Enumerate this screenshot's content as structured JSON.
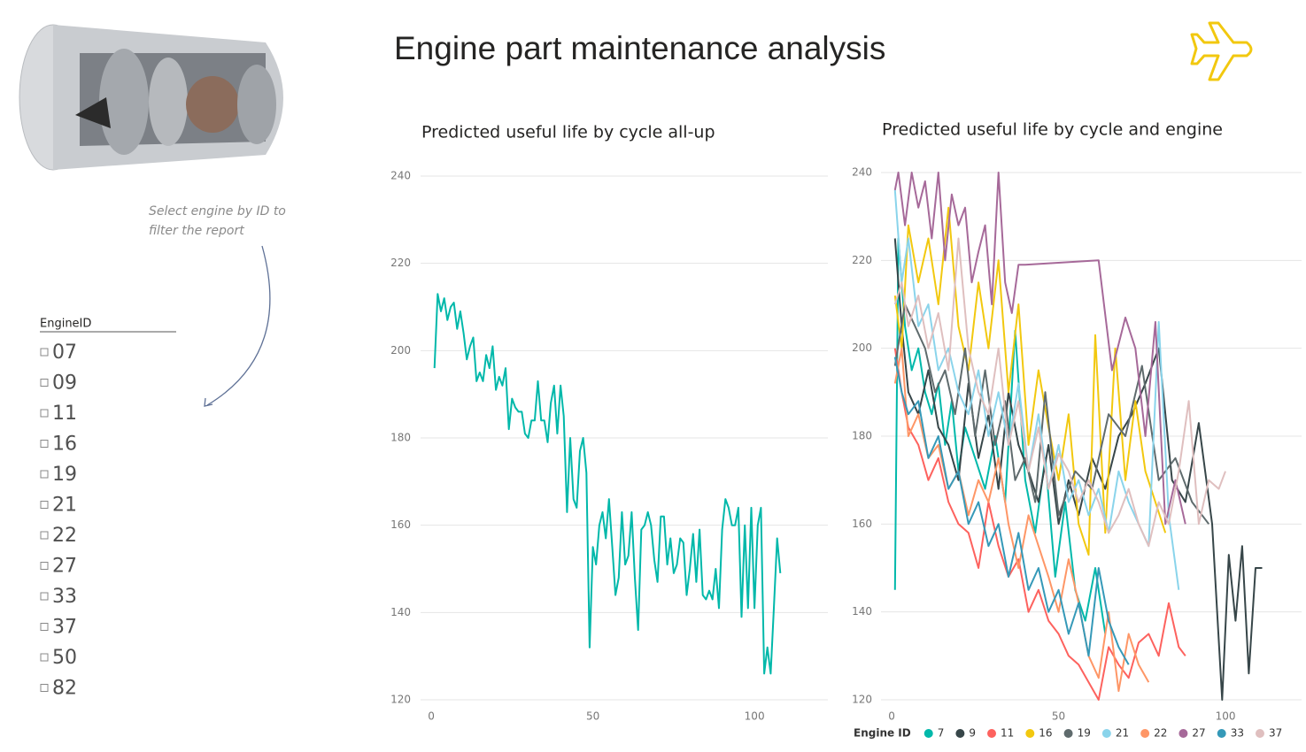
{
  "header": {
    "title": "Engine part maintenance analysis"
  },
  "slicer": {
    "caption": "Select engine by ID to filter the report",
    "title": "EngineID",
    "items": [
      "07",
      "09",
      "11",
      "16",
      "19",
      "21",
      "22",
      "27",
      "33",
      "37",
      "50",
      "82"
    ]
  },
  "chart_data": [
    {
      "type": "line",
      "title": "Predicted useful life by cycle all-up",
      "color": "#01b8aa",
      "x": [
        1,
        2,
        3,
        4,
        5,
        6,
        7,
        8,
        9,
        10,
        11,
        12,
        13,
        14,
        15,
        16,
        17,
        18,
        19,
        20,
        21,
        22,
        23,
        24,
        25,
        26,
        27,
        28,
        29,
        30,
        31,
        32,
        33,
        34,
        35,
        36,
        37,
        38,
        39,
        40,
        41,
        42,
        43,
        44,
        45,
        46,
        47,
        48,
        49,
        50,
        51,
        52,
        53,
        54,
        55,
        56,
        57,
        58,
        59,
        60,
        61,
        62,
        63,
        64,
        65,
        66,
        67,
        68,
        69,
        70,
        71,
        72,
        73,
        74,
        75,
        76,
        77,
        78,
        79,
        80,
        81,
        82,
        83,
        84,
        85,
        86,
        87,
        88,
        89,
        90,
        91,
        92,
        93,
        94,
        95,
        96,
        97,
        98,
        99,
        100,
        101,
        102,
        103,
        104,
        105,
        106,
        107,
        108
      ],
      "values": [
        196,
        213,
        209,
        212,
        207,
        210,
        211,
        205,
        209,
        204,
        198,
        201,
        203,
        193,
        195,
        193,
        199,
        196,
        201,
        191,
        194,
        192,
        196,
        182,
        189,
        187,
        186,
        186,
        181,
        180,
        184,
        184,
        193,
        184,
        184,
        179,
        188,
        192,
        181,
        192,
        185,
        163,
        180,
        166,
        164,
        177,
        180,
        172,
        132,
        155,
        151,
        160,
        163,
        157,
        166,
        155,
        144,
        148,
        163,
        151,
        153,
        163,
        148,
        136,
        159,
        160,
        163,
        160,
        152,
        147,
        162,
        162,
        151,
        157,
        149,
        151,
        157,
        156,
        144,
        150,
        158,
        147,
        159,
        144,
        143,
        145,
        143,
        150,
        141,
        159,
        166,
        164,
        160,
        160,
        164,
        139,
        160,
        141,
        164,
        141,
        160,
        164,
        126,
        132,
        126,
        141,
        157,
        149
      ],
      "xlim": [
        -3.3,
        122.7
      ],
      "ylim": [
        120,
        240
      ],
      "xticks": [
        0,
        50,
        100
      ],
      "yticks": [
        120,
        140,
        160,
        180,
        200,
        220,
        240
      ],
      "grid": true
    },
    {
      "type": "line",
      "title": "Predicted useful life by cycle and engine",
      "legend_title": "Engine ID",
      "legend": "bottom",
      "xlim": [
        -3.2,
        122.8
      ],
      "ylim": [
        120,
        240
      ],
      "xticks": [
        0,
        50,
        100
      ],
      "yticks": [
        120,
        140,
        160,
        180,
        200,
        220,
        240
      ],
      "grid": true,
      "series": [
        {
          "name": "7",
          "color": "#01b8aa",
          "x": [
            1,
            2,
            4,
            6,
            8,
            10,
            12,
            14,
            16,
            18,
            20,
            22,
            25,
            28,
            31,
            34,
            37,
            40,
            43,
            46,
            49,
            52,
            55,
            58,
            61,
            64
          ],
          "values": [
            145,
            225,
            205,
            195,
            200,
            190,
            185,
            192,
            178,
            188,
            172,
            182,
            175,
            168,
            180,
            165,
            204,
            170,
            158,
            175,
            148,
            165,
            145,
            138,
            150,
            135
          ]
        },
        {
          "name": "9",
          "color": "#374649",
          "x": [
            1,
            3,
            5,
            8,
            11,
            14,
            17,
            20,
            23,
            26,
            29,
            32,
            35,
            38,
            41,
            44,
            47,
            50,
            53,
            56,
            60,
            64,
            68,
            72,
            76,
            80,
            84,
            88,
            92,
            96,
            99,
            101,
            103,
            105,
            107,
            109,
            111
          ],
          "values": [
            225,
            205,
            190,
            185,
            195,
            182,
            178,
            170,
            192,
            175,
            185,
            168,
            190,
            178,
            172,
            165,
            178,
            160,
            170,
            162,
            175,
            168,
            180,
            185,
            192,
            200,
            170,
            165,
            183,
            160,
            120,
            153,
            138,
            155,
            126,
            150,
            150
          ]
        },
        {
          "name": "11",
          "color": "#fd625e",
          "x": [
            1,
            3,
            5,
            8,
            11,
            14,
            17,
            20,
            23,
            26,
            29,
            32,
            35,
            38,
            41,
            44,
            47,
            50,
            53,
            56,
            59,
            62,
            65,
            68,
            71,
            74,
            77,
            80,
            83,
            86,
            88
          ],
          "values": [
            200,
            190,
            182,
            178,
            170,
            175,
            165,
            160,
            158,
            150,
            165,
            155,
            148,
            152,
            140,
            145,
            138,
            135,
            130,
            128,
            124,
            120,
            132,
            128,
            125,
            133,
            135,
            130,
            142,
            132,
            130
          ]
        },
        {
          "name": "16",
          "color": "#f2c80f",
          "x": [
            1,
            3,
            5,
            8,
            11,
            14,
            17,
            20,
            23,
            26,
            29,
            32,
            35,
            38,
            41,
            44,
            47,
            50,
            53,
            56,
            59,
            61,
            64,
            67,
            70,
            73,
            76,
            79,
            82
          ],
          "values": [
            212,
            200,
            228,
            215,
            225,
            210,
            232,
            205,
            195,
            215,
            200,
            220,
            190,
            210,
            178,
            195,
            182,
            170,
            185,
            160,
            153,
            203,
            158,
            200,
            170,
            188,
            172,
            165,
            158
          ]
        },
        {
          "name": "19",
          "color": "#5f6b6d",
          "x": [
            1,
            4,
            7,
            10,
            13,
            16,
            19,
            22,
            25,
            28,
            31,
            34,
            37,
            40,
            43,
            46,
            50,
            55,
            60,
            65,
            70,
            75,
            80,
            85,
            90,
            95
          ],
          "values": [
            196,
            210,
            205,
            200,
            190,
            195,
            185,
            200,
            180,
            195,
            178,
            188,
            170,
            175,
            165,
            190,
            162,
            172,
            168,
            185,
            180,
            196,
            170,
            175,
            165,
            160
          ]
        },
        {
          "name": "21",
          "color": "#8ad4eb",
          "x": [
            1,
            3,
            5,
            8,
            11,
            14,
            17,
            20,
            23,
            26,
            29,
            32,
            35,
            38,
            41,
            44,
            47,
            50,
            53,
            56,
            59,
            62,
            65,
            68,
            71,
            74,
            77,
            80,
            83,
            86
          ],
          "values": [
            236,
            215,
            225,
            205,
            210,
            195,
            200,
            190,
            185,
            195,
            180,
            190,
            178,
            192,
            172,
            185,
            168,
            178,
            165,
            170,
            162,
            168,
            158,
            172,
            165,
            160,
            155,
            206,
            162,
            145
          ]
        },
        {
          "name": "22",
          "color": "#fe9666",
          "x": [
            1,
            3,
            5,
            8,
            11,
            14,
            17,
            20,
            23,
            26,
            29,
            32,
            35,
            38,
            41,
            44,
            47,
            50,
            53,
            56,
            59,
            62,
            65,
            68,
            71,
            74,
            77
          ],
          "values": [
            192,
            200,
            180,
            185,
            175,
            178,
            168,
            172,
            162,
            170,
            165,
            175,
            160,
            150,
            162,
            155,
            148,
            140,
            152,
            142,
            130,
            125,
            140,
            122,
            135,
            128,
            124
          ]
        },
        {
          "name": "27",
          "color": "#a66999",
          "x": [
            1,
            2,
            4,
            6,
            8,
            10,
            12,
            14,
            16,
            18,
            20,
            22,
            24,
            26,
            28,
            30,
            32,
            34,
            36,
            38,
            40,
            62,
            66,
            70,
            73,
            76,
            79,
            82,
            85,
            88
          ],
          "values": [
            236,
            240,
            228,
            240,
            232,
            238,
            225,
            240,
            220,
            235,
            228,
            232,
            215,
            222,
            228,
            210,
            240,
            215,
            208,
            219,
            219,
            220,
            195,
            207,
            200,
            180,
            206,
            160,
            170,
            160
          ]
        },
        {
          "name": "33",
          "color": "#3599b8",
          "x": [
            1,
            3,
            5,
            8,
            11,
            14,
            17,
            20,
            23,
            26,
            29,
            32,
            35,
            38,
            41,
            44,
            47,
            50,
            53,
            56,
            59,
            62,
            65,
            68,
            71
          ],
          "values": [
            198,
            190,
            185,
            188,
            175,
            180,
            168,
            172,
            160,
            165,
            155,
            160,
            148,
            158,
            145,
            150,
            140,
            145,
            135,
            142,
            130,
            150,
            138,
            132,
            128
          ]
        },
        {
          "name": "37",
          "color": "#dfbfbf",
          "x": [
            1,
            3,
            5,
            8,
            11,
            14,
            17,
            20,
            23,
            26,
            29,
            32,
            35,
            38,
            41,
            44,
            47,
            50,
            53,
            56,
            59,
            62,
            65,
            68,
            71,
            74,
            77,
            80,
            83,
            86,
            89,
            92,
            95,
            98,
            100
          ],
          "values": [
            210,
            215,
            205,
            212,
            200,
            208,
            195,
            225,
            200,
            190,
            185,
            200,
            178,
            188,
            172,
            182,
            168,
            176,
            172,
            165,
            170,
            165,
            158,
            162,
            168,
            160,
            155,
            165,
            160,
            172,
            188,
            160,
            170,
            168,
            172
          ]
        }
      ]
    }
  ]
}
